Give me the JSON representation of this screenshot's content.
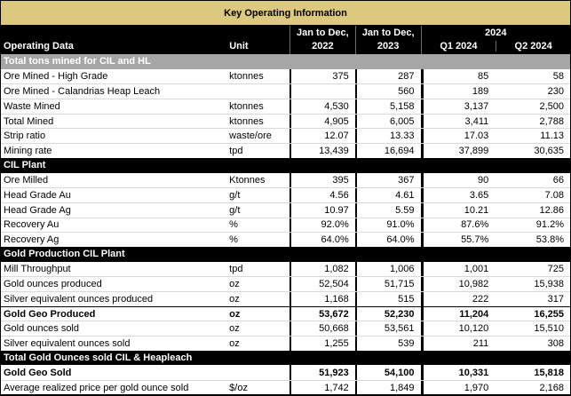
{
  "title": "Key Operating Information",
  "colors": {
    "title_bg": "#DCC87E",
    "section_gray_bg": "#A6A6A6",
    "section_black_bg": "#000000",
    "header_bg": "#000000",
    "header_text": "#FFFFFF",
    "row_separator": "#D9D9D9"
  },
  "columns": {
    "operating_data": "Operating Data",
    "unit": "Unit",
    "y2022_line1": "Jan to Dec,",
    "y2022_line2": "2022",
    "y2023_line1": "Jan to Dec,",
    "y2023_line2": "2023",
    "year_2024": "2024",
    "q1": "Q1 2024",
    "q2": "Q2 2024"
  },
  "rows": [
    {
      "type": "section",
      "label": "Total tons mined for CIL and HL"
    },
    {
      "type": "data",
      "label": "Ore Mined - High Grade",
      "unit": "ktonnes",
      "v2022": "375",
      "v2023": "287",
      "q1": "85",
      "q2": "58"
    },
    {
      "type": "data",
      "label": "Ore Mined - Calandrias Heap Leach",
      "unit": "",
      "v2022": "",
      "v2023": "560",
      "q1": "189",
      "q2": "230"
    },
    {
      "type": "data",
      "label": "Waste Mined",
      "unit": "ktonnes",
      "v2022": "4,530",
      "v2023": "5,158",
      "q1": "3,137",
      "q2": "2,500"
    },
    {
      "type": "data",
      "label": "Total Mined",
      "unit": "ktonnes",
      "v2022": "4,905",
      "v2023": "6,005",
      "q1": "3,411",
      "q2": "2,788"
    },
    {
      "type": "data",
      "label": "Strip ratio",
      "unit": "waste/ore",
      "v2022": "12.07",
      "v2023": "13.33",
      "q1": "17.03",
      "q2": "11.13"
    },
    {
      "type": "data",
      "label": "Mining rate",
      "unit": "tpd",
      "v2022": "13,439",
      "v2023": "16,694",
      "q1": "37,899",
      "q2": "30,635"
    },
    {
      "type": "section",
      "label": "CIL Plant"
    },
    {
      "type": "data",
      "label": "Ore Milled",
      "unit": "Ktonnes",
      "v2022": "395",
      "v2023": "367",
      "q1": "90",
      "q2": "66"
    },
    {
      "type": "data",
      "label": "Head Grade Au",
      "unit": "g/t",
      "v2022": "4.56",
      "v2023": "4.61",
      "q1": "3.65",
      "q2": "7.08"
    },
    {
      "type": "data",
      "label": "Head Grade Ag",
      "unit": "g/t",
      "v2022": "10.97",
      "v2023": "5.59",
      "q1": "10.21",
      "q2": "12.86"
    },
    {
      "type": "data",
      "label": "Recovery Au",
      "unit": "%",
      "v2022": "92.0%",
      "v2023": "91.0%",
      "q1": "87.6%",
      "q2": "91.2%"
    },
    {
      "type": "data",
      "label": "Recovery Ag",
      "unit": "%",
      "v2022": "64.0%",
      "v2023": "64.0%",
      "q1": "55.7%",
      "q2": "53.8%"
    },
    {
      "type": "section",
      "label": "Gold Production CIL Plant"
    },
    {
      "type": "data",
      "label": "Mill Throughput",
      "unit": "tpd",
      "v2022": "1,082",
      "v2023": "1,006",
      "q1": "1,001",
      "q2": "725"
    },
    {
      "type": "data",
      "label": "Gold ounces produced",
      "unit": "oz",
      "v2022": "52,504",
      "v2023": "51,715",
      "q1": "10,982",
      "q2": "15,938"
    },
    {
      "type": "data",
      "label": "Silver equivalent ounces produced",
      "unit": "oz",
      "v2022": "1,168",
      "v2023": "515",
      "q1": "222",
      "q2": "317"
    },
    {
      "type": "data",
      "label": "Gold Geo Produced",
      "unit": "oz",
      "v2022": "53,672",
      "v2023": "52,230",
      "q1": "11,204",
      "q2": "16,255"
    },
    {
      "type": "data",
      "label": "Gold ounces sold",
      "unit": "oz",
      "v2022": "50,668",
      "v2023": "53,561",
      "q1": "10,120",
      "q2": "15,510"
    },
    {
      "type": "data",
      "label": "Silver equivalent ounces sold",
      "unit": "oz",
      "v2022": "1,255",
      "v2023": "539",
      "q1": "211",
      "q2": "308"
    },
    {
      "type": "section",
      "label": "Total Gold Ounces sold CIL & Heapleach"
    },
    {
      "type": "data",
      "label": "Gold Geo Sold",
      "unit": "",
      "v2022": "51,923",
      "v2023": "54,100",
      "q1": "10,331",
      "q2": "15,818"
    },
    {
      "type": "data",
      "label": "Average realized price per gold ounce sold",
      "unit": "$/oz",
      "v2022": "1,742",
      "v2023": "1,849",
      "q1": "1,970",
      "q2": "2,168"
    }
  ]
}
